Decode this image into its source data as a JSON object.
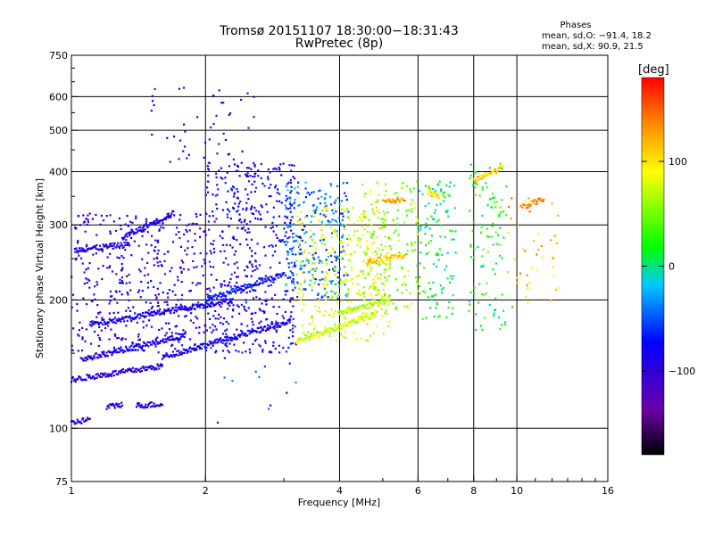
{
  "chart_data": {
    "type": "scatter",
    "title": "Tromsø 20151107 18:30:00−18:31:43",
    "subtitle": "RwPretec (8p)",
    "stats": {
      "heading": "Phases",
      "line_o": "mean, sd,O: −91.4, 18.2",
      "line_x": "mean, sd,X:  90.9, 21.5"
    },
    "xlabel": "Frequency [MHz]",
    "ylabel": "Stationary phase Virtual Height [km]",
    "x_scale": "log",
    "y_scale": "log",
    "xlim": [
      1,
      16
    ],
    "ylim": [
      75,
      750
    ],
    "x_ticks": [
      1,
      2,
      4,
      6,
      8,
      10,
      16
    ],
    "x_tick_labels": [
      "1",
      "2",
      "4",
      "6",
      "8",
      "10",
      "16"
    ],
    "x_grid": [
      2,
      4,
      6,
      8,
      10
    ],
    "y_ticks": [
      75,
      100,
      200,
      300,
      400,
      500,
      600,
      750
    ],
    "y_tick_labels": [
      "75",
      "100",
      "200",
      "300",
      "400",
      "500",
      "600",
      "750"
    ],
    "y_grid": [
      100,
      200,
      300,
      400,
      500,
      600
    ],
    "grid": true,
    "colorbar": {
      "unit": "[deg]",
      "range": [
        -180,
        180
      ],
      "ticks": [
        100,
        0,
        -100
      ],
      "tick_labels": [
        "100",
        "0",
        "−100"
      ]
    },
    "traces": [
      {
        "x": [
          1.02,
          1.35
        ],
        "y": [
          262,
          270
        ],
        "phase": -95
      },
      {
        "x": [
          1.3,
          1.7
        ],
        "y": [
          280,
          320
        ],
        "phase": -90
      },
      {
        "x": [
          1.0,
          1.6
        ],
        "y": [
          130,
          140
        ],
        "phase": -95
      },
      {
        "x": [
          1.6,
          3.1
        ],
        "y": [
          147,
          178
        ],
        "phase": -85
      },
      {
        "x": [
          1.0,
          1.1
        ],
        "y": [
          103,
          105
        ],
        "phase": -100
      },
      {
        "x": [
          1.2,
          1.3
        ],
        "y": [
          112,
          114
        ],
        "phase": -95
      },
      {
        "x": [
          1.4,
          1.6
        ],
        "y": [
          113,
          114
        ],
        "phase": -95
      },
      {
        "x": [
          1.05,
          1.8
        ],
        "y": [
          145,
          165
        ],
        "phase": -90
      },
      {
        "x": [
          1.1,
          2.3
        ],
        "y": [
          175,
          200
        ],
        "phase": -85
      },
      {
        "x": [
          2.0,
          3.0
        ],
        "y": [
          200,
          230
        ],
        "phase": -70
      },
      {
        "x": [
          3.2,
          4.8
        ],
        "y": [
          160,
          185
        ],
        "phase": 75
      },
      {
        "x": [
          4.0,
          5.2
        ],
        "y": [
          187,
          200
        ],
        "phase": 70
      },
      {
        "x": [
          4.6,
          5.6
        ],
        "y": [
          245,
          255
        ],
        "phase": 110
      },
      {
        "x": [
          5.0,
          5.6
        ],
        "y": [
          340,
          345
        ],
        "phase": 130
      },
      {
        "x": [
          6.3,
          6.7
        ],
        "y": [
          360,
          350
        ],
        "phase": 95
      },
      {
        "x": [
          10.2,
          11.5
        ],
        "y": [
          330,
          345
        ],
        "phase": 140
      },
      {
        "x": [
          8.0,
          9.3
        ],
        "y": [
          380,
          410
        ],
        "phase": 105
      }
    ],
    "clusters": [
      {
        "x": [
          1.0,
          2.0
        ],
        "y": [
          150,
          320
        ],
        "n": 420,
        "phase": -95
      },
      {
        "x": [
          2.0,
          3.2
        ],
        "y": [
          150,
          420
        ],
        "n": 520,
        "phase": -85
      },
      {
        "x": [
          3.0,
          4.2
        ],
        "y": [
          200,
          380
        ],
        "n": 260,
        "phase": -40
      },
      {
        "x": [
          3.2,
          5.2
        ],
        "y": [
          160,
          330
        ],
        "n": 360,
        "phase": 80
      },
      {
        "x": [
          4.5,
          6.0
        ],
        "y": [
          190,
          380
        ],
        "n": 160,
        "phase": 60
      },
      {
        "x": [
          6.0,
          7.3
        ],
        "y": [
          180,
          380
        ],
        "n": 120,
        "phase": 10
      },
      {
        "x": [
          7.8,
          9.5
        ],
        "y": [
          170,
          420
        ],
        "n": 110,
        "phase": 20
      },
      {
        "x": [
          9.5,
          12.5
        ],
        "y": [
          190,
          350
        ],
        "n": 45,
        "phase": 120
      },
      {
        "x": [
          1.5,
          2.6
        ],
        "y": [
          420,
          640
        ],
        "n": 45,
        "phase": -100
      },
      {
        "x": [
          2.0,
          3.5
        ],
        "y": [
          100,
          150
        ],
        "n": 12,
        "phase": -60
      }
    ]
  }
}
